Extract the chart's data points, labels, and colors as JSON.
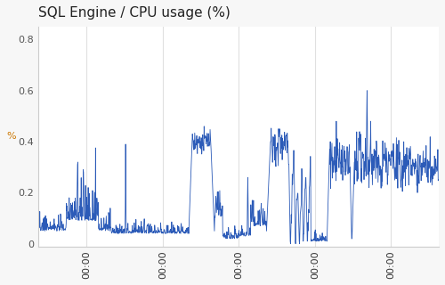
{
  "title": "SQL Engine / CPU usage (%)",
  "ylabel": "%",
  "ylim": [
    -0.01,
    0.85
  ],
  "yticks": [
    0,
    0.2,
    0.4,
    0.6,
    0.8
  ],
  "yticklabels": [
    "0",
    "0.2",
    "0.4",
    "0.6",
    "0.8"
  ],
  "line_color": "#2c5bb8",
  "line_width": 0.6,
  "background_color": "#f7f7f7",
  "plot_bg_color": "#ffffff",
  "grid_color": "#e0e0e0",
  "title_fontsize": 11,
  "axis_label_fontsize": 8,
  "tick_label_fontsize": 8,
  "ytick_color": "#555555",
  "xtick_color": "#333333",
  "ylabel_color": "#cc7700",
  "n_points": 1200,
  "n_xticks": 5,
  "xtick_labels": [
    "00:00",
    "00:00",
    "00:00",
    "00:00",
    "00:00"
  ]
}
